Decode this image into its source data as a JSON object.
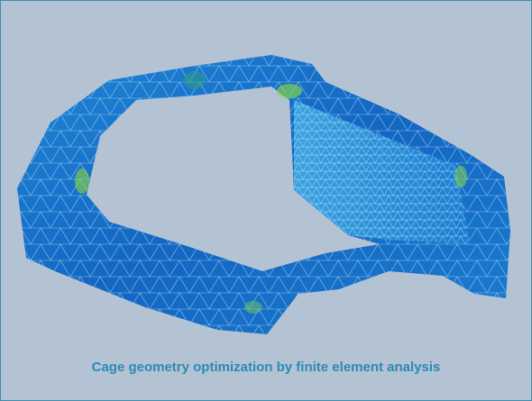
{
  "caption": "Cage geometry optimization by finite element analysis"
}
